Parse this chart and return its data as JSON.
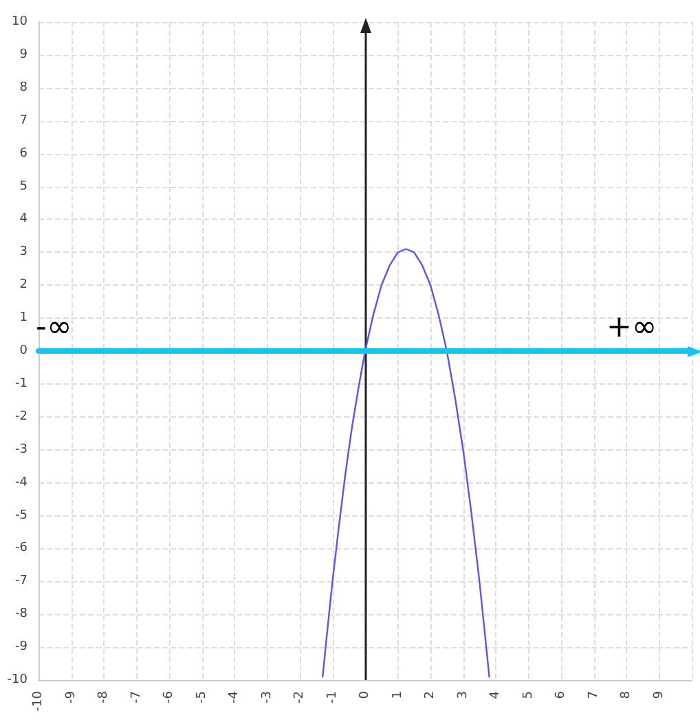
{
  "chart_data": {
    "type": "line",
    "xlim": [
      -10,
      10
    ],
    "ylim": [
      -10,
      10
    ],
    "xticks": [
      -10,
      -9,
      -8,
      -7,
      -6,
      -5,
      -4,
      -3,
      -2,
      -1,
      0,
      1,
      2,
      3,
      4,
      5,
      6,
      7,
      8,
      9,
      {
        "value": 10,
        "label": null
      }
    ],
    "yticks": [
      -10,
      -9,
      -8,
      -7,
      -6,
      -5,
      -4,
      -3,
      -2,
      -1,
      0,
      1,
      2,
      3,
      4,
      5,
      6,
      7,
      8,
      9,
      10
    ],
    "grid": true,
    "line_style": "solid",
    "series": [
      {
        "color": "#5555ff",
        "x": [
          -1.3,
          -1.2,
          -1,
          -0.8,
          -0.6,
          -0.4,
          -0.2,
          0,
          0.25,
          0.5,
          0.75,
          1,
          1.25,
          1.5,
          1.75,
          2,
          2.25,
          2.5,
          2.75,
          3,
          3.25,
          3.5,
          3.75,
          3.8
        ],
        "values": [
          -9.9,
          -8.9,
          -7,
          -5.3,
          -3.7,
          -2.3,
          -1.1,
          0,
          1.1,
          2,
          2.6,
          3,
          3.1,
          3,
          2.6,
          2,
          1.1,
          0,
          -1.4,
          -3,
          -4.9,
          -7,
          -9.4,
          -9.9
        ]
      },
      {
        "color": "#1ec0ee",
        "x": [
          -10,
          10
        ],
        "values": [
          0,
          0
        ]
      }
    ],
    "annotations": [
      "-∞",
      "+∞"
    ]
  }
}
